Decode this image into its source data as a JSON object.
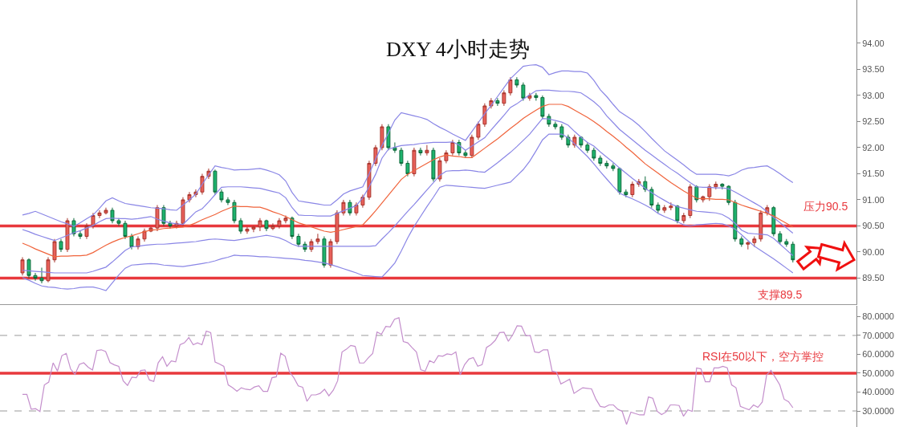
{
  "chart_data": [
    {
      "type": "candlestick",
      "title": "DXY 4小时走势",
      "tick_labels": "y",
      "categories": [
        null,
        null,
        null,
        null,
        null,
        null,
        null,
        null,
        null,
        null,
        null,
        null,
        null,
        null,
        null,
        null,
        null,
        null,
        null,
        null,
        null,
        null,
        null,
        null,
        null,
        null,
        null,
        null,
        null,
        null,
        null,
        null,
        null,
        null,
        null,
        null,
        null,
        null,
        null,
        null,
        null,
        null,
        null,
        null,
        null,
        null,
        null,
        null,
        null,
        null,
        null,
        null,
        null,
        null,
        null,
        null,
        null,
        null,
        null,
        null,
        null,
        null,
        null,
        null,
        null,
        null,
        null,
        null,
        null,
        null,
        null,
        null,
        null,
        null,
        null,
        null,
        null,
        null,
        null,
        null,
        null,
        null,
        null,
        null,
        null,
        null,
        null,
        null,
        null,
        null,
        null,
        null,
        null,
        null,
        null,
        null,
        null,
        null,
        null,
        null,
        null,
        null,
        null,
        null,
        null,
        null,
        null,
        null,
        null,
        null,
        null,
        null,
        null,
        null,
        null,
        null,
        null,
        null,
        null,
        null,
        null
      ],
      "ohlc": [
        [
          89.6,
          89.9,
          89.55,
          89.85
        ],
        [
          89.85,
          89.88,
          89.5,
          89.55
        ],
        [
          89.55,
          89.6,
          89.45,
          89.5
        ],
        [
          89.5,
          89.7,
          89.4,
          89.45
        ],
        [
          89.45,
          89.9,
          89.42,
          89.85
        ],
        [
          89.85,
          90.25,
          89.8,
          90.2
        ],
        [
          90.2,
          90.25,
          90.0,
          90.05
        ],
        [
          90.05,
          90.65,
          90.0,
          90.6
        ],
        [
          90.6,
          90.65,
          90.3,
          90.35
        ],
        [
          90.35,
          90.4,
          90.25,
          90.3
        ],
        [
          90.3,
          90.55,
          90.25,
          90.5
        ],
        [
          90.5,
          90.75,
          90.45,
          90.7
        ],
        [
          90.7,
          90.8,
          90.65,
          90.75
        ],
        [
          90.75,
          90.85,
          90.72,
          90.8
        ],
        [
          90.8,
          90.85,
          90.55,
          90.6
        ],
        [
          90.6,
          90.65,
          90.5,
          90.55
        ],
        [
          90.55,
          90.6,
          90.25,
          90.3
        ],
        [
          90.3,
          90.35,
          90.05,
          90.1
        ],
        [
          90.1,
          90.3,
          90.05,
          90.25
        ],
        [
          90.25,
          90.45,
          90.2,
          90.4
        ],
        [
          90.4,
          90.48,
          90.38,
          90.46
        ],
        [
          90.46,
          90.9,
          90.4,
          90.85
        ],
        [
          90.85,
          90.9,
          90.5,
          90.55
        ],
        [
          90.55,
          90.6,
          90.45,
          90.5
        ],
        [
          90.5,
          90.6,
          90.45,
          90.55
        ],
        [
          90.55,
          91.05,
          90.5,
          91.0
        ],
        [
          91.0,
          91.15,
          90.95,
          91.1
        ],
        [
          91.1,
          91.2,
          91.05,
          91.15
        ],
        [
          91.15,
          91.5,
          91.1,
          91.45
        ],
        [
          91.45,
          91.6,
          91.4,
          91.55
        ],
        [
          91.55,
          91.58,
          91.1,
          91.15
        ],
        [
          91.15,
          91.2,
          90.95,
          91.0
        ],
        [
          91.0,
          91.05,
          90.9,
          90.95
        ],
        [
          90.95,
          91.0,
          90.55,
          90.6
        ],
        [
          90.6,
          90.65,
          90.35,
          90.4
        ],
        [
          90.4,
          90.48,
          90.35,
          90.44
        ],
        [
          90.44,
          90.5,
          90.38,
          90.48
        ],
        [
          90.48,
          90.65,
          90.4,
          90.6
        ],
        [
          90.6,
          90.62,
          90.4,
          90.45
        ],
        [
          90.45,
          90.55,
          90.42,
          90.5
        ],
        [
          90.5,
          90.65,
          90.45,
          90.6
        ],
        [
          90.6,
          90.7,
          90.55,
          90.65
        ],
        [
          90.65,
          90.68,
          90.25,
          90.3
        ],
        [
          90.3,
          90.35,
          90.1,
          90.15
        ],
        [
          90.15,
          90.2,
          90.0,
          90.05
        ],
        [
          90.05,
          90.25,
          90.0,
          90.2
        ],
        [
          90.2,
          90.35,
          90.15,
          90.25
        ],
        [
          90.25,
          90.3,
          89.7,
          89.75
        ],
        [
          89.75,
          90.25,
          89.7,
          90.2
        ],
        [
          90.2,
          90.8,
          90.15,
          90.75
        ],
        [
          90.75,
          91.0,
          90.7,
          90.95
        ],
        [
          90.95,
          91.0,
          90.7,
          90.75
        ],
        [
          90.75,
          90.95,
          90.7,
          90.9
        ],
        [
          90.9,
          91.1,
          90.85,
          91.05
        ],
        [
          91.05,
          91.75,
          91.0,
          91.7
        ],
        [
          91.7,
          92.05,
          91.65,
          92.0
        ],
        [
          92.0,
          92.45,
          91.95,
          92.4
        ],
        [
          92.4,
          92.45,
          91.95,
          92.0
        ],
        [
          92.0,
          92.1,
          91.9,
          91.95
        ],
        [
          91.95,
          92.0,
          91.65,
          91.7
        ],
        [
          91.7,
          91.75,
          91.45,
          91.5
        ],
        [
          91.5,
          92.0,
          91.45,
          91.95
        ],
        [
          91.95,
          92.0,
          91.85,
          91.9
        ],
        [
          91.9,
          92.05,
          91.85,
          91.95
        ],
        [
          91.95,
          92.0,
          91.35,
          91.4
        ],
        [
          91.4,
          91.8,
          91.35,
          91.75
        ],
        [
          91.75,
          91.95,
          91.7,
          91.9
        ],
        [
          91.9,
          92.15,
          91.85,
          92.1
        ],
        [
          92.1,
          92.15,
          91.85,
          91.9
        ],
        [
          91.9,
          91.95,
          91.8,
          91.85
        ],
        [
          91.85,
          92.25,
          91.8,
          92.2
        ],
        [
          92.2,
          92.5,
          92.15,
          92.45
        ],
        [
          92.45,
          92.85,
          92.4,
          92.8
        ],
        [
          92.8,
          92.95,
          92.75,
          92.9
        ],
        [
          92.9,
          92.95,
          92.8,
          92.85
        ],
        [
          92.85,
          93.1,
          92.8,
          93.05
        ],
        [
          93.05,
          93.35,
          93.0,
          93.3
        ],
        [
          93.3,
          93.35,
          93.15,
          93.2
        ],
        [
          93.2,
          93.25,
          92.9,
          92.95
        ],
        [
          92.95,
          93.05,
          92.9,
          93.0
        ],
        [
          93.0,
          93.05,
          92.9,
          92.96
        ],
        [
          92.96,
          93.0,
          92.55,
          92.6
        ],
        [
          92.6,
          92.65,
          92.4,
          92.45
        ],
        [
          92.45,
          92.5,
          92.35,
          92.4
        ],
        [
          92.4,
          92.45,
          92.15,
          92.2
        ],
        [
          92.2,
          92.25,
          92.0,
          92.05
        ],
        [
          92.05,
          92.25,
          92.0,
          92.2
        ],
        [
          92.2,
          92.22,
          92.0,
          92.05
        ],
        [
          92.05,
          92.1,
          91.9,
          91.95
        ],
        [
          91.95,
          92.0,
          91.75,
          91.8
        ],
        [
          91.8,
          91.85,
          91.65,
          91.7
        ],
        [
          91.7,
          91.75,
          91.6,
          91.65
        ],
        [
          91.65,
          91.7,
          91.55,
          91.6
        ],
        [
          91.6,
          91.62,
          91.1,
          91.15
        ],
        [
          91.15,
          91.2,
          91.05,
          91.1
        ],
        [
          91.1,
          91.35,
          91.05,
          91.3
        ],
        [
          91.3,
          91.4,
          91.25,
          91.35
        ],
        [
          91.35,
          91.45,
          91.15,
          91.2
        ],
        [
          91.2,
          91.25,
          90.85,
          90.9
        ],
        [
          90.9,
          90.95,
          90.75,
          90.8
        ],
        [
          90.8,
          90.9,
          90.75,
          90.85
        ],
        [
          90.85,
          90.95,
          90.8,
          90.88
        ],
        [
          90.88,
          90.9,
          90.55,
          90.6
        ],
        [
          90.6,
          90.75,
          90.55,
          90.7
        ],
        [
          90.7,
          91.3,
          90.65,
          91.25
        ],
        [
          91.25,
          91.28,
          90.95,
          91.0
        ],
        [
          91.0,
          91.08,
          90.95,
          91.06
        ],
        [
          91.06,
          91.3,
          90.98,
          91.25
        ],
        [
          91.25,
          91.35,
          91.2,
          91.3
        ],
        [
          91.3,
          91.32,
          91.2,
          91.26
        ],
        [
          91.26,
          91.28,
          90.9,
          90.95
        ],
        [
          90.95,
          91.0,
          90.2,
          90.25
        ],
        [
          90.25,
          90.3,
          90.1,
          90.15
        ],
        [
          90.15,
          90.2,
          90.05,
          90.18
        ],
        [
          90.18,
          90.3,
          90.1,
          90.25
        ],
        [
          90.25,
          90.8,
          90.2,
          90.75
        ],
        [
          90.75,
          90.9,
          90.7,
          90.85
        ],
        [
          90.85,
          90.88,
          90.3,
          90.35
        ],
        [
          90.35,
          90.4,
          90.15,
          90.2
        ],
        [
          90.2,
          90.25,
          90.1,
          90.15
        ],
        [
          90.15,
          90.2,
          89.8,
          89.85
        ]
      ],
      "series": [
        {
          "type": "line",
          "color": "#8a86e6",
          "values": [
            90.71,
            90.74,
            90.78,
            90.73,
            90.68,
            90.63,
            90.58,
            90.54,
            90.49,
            90.56,
            90.64,
            90.71,
            90.84,
            90.98,
            91.04,
            90.98,
            90.93,
            90.91,
            90.89,
            90.87,
            90.85,
            90.84,
            90.83,
            90.81,
            90.8,
            90.9,
            91.0,
            91.11,
            91.3,
            91.48,
            91.65,
            91.62,
            91.6,
            91.57,
            91.58,
            91.58,
            91.59,
            91.6,
            91.57,
            91.53,
            91.48,
            91.36,
            91.14,
            90.98,
            90.96,
            90.94,
            90.92,
            90.9,
            90.9,
            91.0,
            91.11,
            91.17,
            91.21,
            91.25,
            91.5,
            91.78,
            92.04,
            92.28,
            92.53,
            92.67,
            92.64,
            92.61,
            92.58,
            92.54,
            92.46,
            92.39,
            92.33,
            92.26,
            92.2,
            92.14,
            92.31,
            92.48,
            92.65,
            92.81,
            92.98,
            93.15,
            93.32,
            93.44,
            93.56,
            93.58,
            93.59,
            93.54,
            93.4,
            93.44,
            93.47,
            93.47,
            93.46,
            93.46,
            93.43,
            93.29,
            93.11,
            92.98,
            92.83,
            92.69,
            92.61,
            92.53,
            92.43,
            92.31,
            92.18,
            92.06,
            91.94,
            91.85,
            91.76,
            91.67,
            91.57,
            91.49,
            91.49,
            91.49,
            91.49,
            91.48,
            91.46,
            91.5,
            91.57,
            91.61,
            91.62,
            91.64,
            91.65,
            91.58,
            91.5,
            91.41,
            91.33
          ]
        },
        {
          "type": "line",
          "color": "#8a86e6",
          "values": [
            90.43,
            90.39,
            90.34,
            90.3,
            90.26,
            90.22,
            90.27,
            90.32,
            90.37,
            90.41,
            90.46,
            90.51,
            90.58,
            90.64,
            90.65,
            90.64,
            90.64,
            90.63,
            90.64,
            90.66,
            90.68,
            90.63,
            90.59,
            90.56,
            90.54,
            90.53,
            90.65,
            90.77,
            90.83,
            90.96,
            91.1,
            91.24,
            91.25,
            91.25,
            91.25,
            91.24,
            91.23,
            91.22,
            91.19,
            91.16,
            91.13,
            91.04,
            90.85,
            90.71,
            90.7,
            90.7,
            90.69,
            90.69,
            90.69,
            90.74,
            90.79,
            90.84,
            90.89,
            91.04,
            91.25,
            91.49,
            91.8,
            91.97,
            92.01,
            92.04,
            92.05,
            92.06,
            92.08,
            92.09,
            92.1,
            92.1,
            92.1,
            92.11,
            92.05,
            91.95,
            92.03,
            92.11,
            92.19,
            92.34,
            92.48,
            92.62,
            92.77,
            92.84,
            92.93,
            93.01,
            93.09,
            93.1,
            93.1,
            93.09,
            93.08,
            93.08,
            93.07,
            93.05,
            92.97,
            92.88,
            92.77,
            92.61,
            92.48,
            92.35,
            92.25,
            92.15,
            92.05,
            91.95,
            91.86,
            91.77,
            91.68,
            91.59,
            91.51,
            91.42,
            91.33,
            91.25,
            91.24,
            91.24,
            91.23,
            91.23,
            91.21,
            91.15,
            91.08,
            91.01,
            90.94,
            90.87,
            90.77,
            90.66,
            90.56,
            90.46,
            90.36
          ]
        },
        {
          "type": "line",
          "color": "#f0643c",
          "values": [
            90.17,
            90.12,
            90.06,
            90.01,
            89.96,
            89.91,
            89.92,
            89.92,
            89.93,
            89.93,
            89.94,
            89.99,
            90.06,
            90.13,
            90.19,
            90.24,
            90.28,
            90.31,
            90.35,
            90.39,
            90.42,
            90.43,
            90.45,
            90.46,
            90.47,
            90.48,
            90.51,
            90.56,
            90.62,
            90.67,
            90.72,
            90.78,
            90.83,
            90.88,
            90.87,
            90.87,
            90.86,
            90.86,
            90.82,
            90.77,
            90.73,
            90.68,
            90.62,
            90.56,
            90.52,
            90.48,
            90.44,
            90.4,
            90.38,
            90.4,
            90.43,
            90.46,
            90.49,
            90.52,
            90.65,
            90.79,
            90.94,
            91.09,
            91.24,
            91.39,
            91.49,
            91.56,
            91.63,
            91.7,
            91.77,
            91.82,
            91.86,
            91.84,
            91.83,
            91.81,
            91.81,
            91.9,
            91.99,
            92.08,
            92.17,
            92.27,
            92.37,
            92.46,
            92.56,
            92.64,
            92.72,
            92.79,
            92.83,
            92.83,
            92.83,
            92.79,
            92.72,
            92.65,
            92.58,
            92.5,
            92.41,
            92.31,
            92.22,
            92.12,
            92.01,
            91.91,
            91.8,
            91.69,
            91.6,
            91.51,
            91.42,
            91.33,
            91.25,
            91.17,
            91.1,
            91.03,
            91.02,
            91.02,
            91.01,
            91.01,
            91.0,
            90.95,
            90.9,
            90.86,
            90.82,
            90.78,
            90.74,
            90.69,
            90.62,
            90.55,
            90.48
          ]
        },
        {
          "type": "line",
          "color": "#8a86e6",
          "values": [
            89.65,
            89.64,
            89.63,
            89.62,
            89.61,
            89.6,
            89.6,
            89.6,
            89.6,
            89.6,
            89.6,
            89.63,
            89.67,
            89.71,
            89.81,
            89.92,
            90.03,
            90.1,
            90.11,
            90.13,
            90.14,
            90.15,
            90.15,
            90.16,
            90.17,
            90.18,
            90.19,
            90.2,
            90.22,
            90.24,
            90.25,
            90.24,
            90.23,
            90.22,
            90.24,
            90.26,
            90.28,
            90.3,
            90.32,
            90.3,
            90.27,
            90.22,
            90.15,
            90.11,
            90.11,
            90.11,
            90.11,
            90.11,
            90.11,
            90.11,
            90.11,
            90.11,
            90.11,
            90.11,
            90.11,
            90.12,
            90.25,
            90.37,
            90.5,
            90.64,
            90.78,
            90.91,
            91.05,
            91.19,
            91.33,
            91.47,
            91.55,
            91.56,
            91.56,
            91.57,
            91.56,
            91.54,
            91.53,
            91.62,
            91.71,
            91.81,
            91.91,
            92.02,
            92.14,
            92.26,
            92.41,
            92.56,
            92.55,
            92.52,
            92.49,
            92.43,
            92.31,
            92.2,
            92.1,
            92.03,
            91.92,
            91.82,
            91.72,
            91.61,
            91.51,
            91.41,
            91.32,
            91.22,
            91.14,
            91.06,
            90.99,
            90.92,
            90.87,
            90.84,
            90.81,
            90.78,
            90.77,
            90.76,
            90.75,
            90.72,
            90.65,
            90.55,
            90.42,
            90.36,
            90.35,
            90.34,
            90.33,
            90.26,
            90.15,
            90.04,
            89.93
          ]
        },
        {
          "type": "line",
          "color": "#8a86e6",
          "values": [
            89.51,
            89.46,
            89.4,
            89.35,
            89.33,
            89.32,
            89.3,
            89.29,
            89.3,
            89.32,
            89.33,
            89.33,
            89.3,
            89.26,
            89.41,
            89.56,
            89.69,
            89.75,
            89.76,
            89.77,
            89.78,
            89.77,
            89.75,
            89.74,
            89.73,
            89.72,
            89.74,
            89.76,
            89.78,
            89.8,
            89.83,
            89.87,
            89.9,
            89.94,
            89.93,
            89.93,
            89.92,
            89.91,
            89.91,
            89.9,
            89.89,
            89.88,
            89.87,
            89.86,
            89.84,
            89.83,
            89.81,
            89.79,
            89.76,
            89.72,
            89.68,
            89.64,
            89.6,
            89.55,
            89.54,
            89.53,
            89.52,
            89.65,
            89.79,
            90.02,
            90.27,
            90.49,
            90.68,
            90.87,
            91.05,
            91.24,
            91.28,
            91.27,
            91.26,
            91.25,
            91.24,
            91.23,
            91.22,
            91.25,
            91.28,
            91.31,
            91.34,
            91.46,
            91.58,
            91.74,
            91.94,
            92.15,
            92.26,
            92.26,
            92.26,
            92.19,
            92.07,
            91.95,
            91.83,
            91.69,
            91.54,
            91.4,
            91.26,
            91.13,
            91.07,
            91.02,
            90.96,
            90.9,
            90.83,
            90.74,
            90.68,
            90.63,
            90.58,
            90.52,
            90.5,
            90.52,
            90.53,
            90.54,
            90.55,
            90.54,
            90.5,
            90.44,
            90.33,
            90.22,
            90.11,
            90.03,
            89.95,
            89.87,
            89.78,
            89.69,
            89.6
          ]
        }
      ],
      "ylim": [
        89.0,
        94.83
      ],
      "yticks": [
        {
          "value": 89.5,
          "label": "89.50"
        },
        {
          "value": 90,
          "label": "90.00"
        },
        {
          "value": 90.5,
          "label": "90.50"
        },
        {
          "value": 91,
          "label": "91.00"
        },
        {
          "value": 91.5,
          "label": "91.50"
        },
        {
          "value": 92,
          "label": "92.00"
        },
        {
          "value": 92.5,
          "label": "92.50"
        },
        {
          "value": 93,
          "label": "93.00"
        },
        {
          "value": 93.5,
          "label": "93.50"
        },
        {
          "value": 94,
          "label": "94.00"
        }
      ],
      "ref_lines": [
        {
          "axis": "y",
          "value": 90.5,
          "label": "压力90.5",
          "color": "#e8383d"
        },
        {
          "axis": "y",
          "value": 89.5,
          "label": "支撑89.5",
          "color": "#e8383d"
        }
      ]
    },
    {
      "type": "line",
      "tick_labels": "y",
      "categories": [
        null,
        null,
        null,
        null,
        null,
        null,
        null,
        null,
        null,
        null,
        null,
        null,
        null,
        null,
        null,
        null,
        null,
        null,
        null,
        null,
        null,
        null,
        null,
        null,
        null,
        null,
        null,
        null,
        null,
        null,
        null,
        null,
        null,
        null,
        null,
        null,
        null,
        null,
        null,
        null,
        null,
        null,
        null,
        null,
        null,
        null,
        null,
        null,
        null,
        null,
        null,
        null,
        null,
        null,
        null,
        null,
        null,
        null,
        null,
        null,
        null,
        null,
        null,
        null,
        null,
        null,
        null,
        null,
        null,
        null,
        null,
        null,
        null,
        null,
        null,
        null,
        null,
        null,
        null,
        null,
        null,
        null,
        null,
        null,
        null,
        null,
        null,
        null,
        null,
        null,
        null,
        null,
        null,
        null,
        null,
        null,
        null,
        null,
        null,
        null,
        null,
        null,
        null,
        null,
        null,
        null,
        null,
        null,
        null,
        null,
        null,
        null,
        null,
        null,
        null,
        null,
        null,
        null,
        null,
        null,
        null,
        null,
        null,
        null,
        null,
        null,
        null,
        null,
        null,
        null,
        null,
        null,
        null,
        null,
        null,
        null,
        null,
        null,
        null,
        null,
        null,
        null,
        null,
        null,
        null,
        null,
        null,
        null,
        null,
        null,
        null,
        null,
        null,
        null,
        null,
        null,
        null,
        null,
        null,
        null,
        null,
        null,
        null,
        null,
        null,
        null,
        null,
        null,
        null,
        null,
        null,
        null,
        null,
        null,
        null,
        null,
        null
      ],
      "series": [
        {
          "color": "#c48fcc",
          "values": [
            38.8,
            38.8,
            30.9,
            31.2,
            29.7,
            43.8,
            45.3,
            55.5,
            51.1,
            59.3,
            60.5,
            52.2,
            49.4,
            54.7,
            55.5,
            53.2,
            51.7,
            62.0,
            62.4,
            61.5,
            55.6,
            54.4,
            53.6,
            46.0,
            43.5,
            47.9,
            47.6,
            51.4,
            51.7,
            46.4,
            45.6,
            55.5,
            58.7,
            53.7,
            56.5,
            56.0,
            65.1,
            66.1,
            68.9,
            65.1,
            66.1,
            65.1,
            72.3,
            71.5,
            55.9,
            54.9,
            53.6,
            43.8,
            42.3,
            40.4,
            42.3,
            41.5,
            41.2,
            42.7,
            43.3,
            40.4,
            40.4,
            47.6,
            48.1,
            60.6,
            59.0,
            50.7,
            47.6,
            43.3,
            42.6,
            35.1,
            38.5,
            38.5,
            39.3,
            41.5,
            38.0,
            41.0,
            46.0,
            61.2,
            62.7,
            64.7,
            64.2,
            55.4,
            55.4,
            58.1,
            60.4,
            71.8,
            70.6,
            74.8,
            74.5,
            78.6,
            79.4,
            66.8,
            66.1,
            63.5,
            61.2,
            51.8,
            51.1,
            56.7,
            55.5,
            59.3,
            59.0,
            60.2,
            59.8,
            61.3,
            49.1,
            54.5,
            57.5,
            58.3,
            53.7,
            54.5,
            63.6,
            65.1,
            67.4,
            71.5,
            71.7,
            66.9,
            70.4,
            75.1,
            74.9,
            69.8,
            70.0,
            61.3,
            60.9,
            62.4,
            62.4,
            51.1,
            50.6,
            44.3,
            45.5,
            46.8,
            39.3,
            40.8,
            42.3,
            42.0,
            41.7,
            36.2,
            32.4,
            32.0,
            33.2,
            33.2,
            30.9,
            29.8,
            22.9,
            29.4,
            28.6,
            27.9,
            27.9,
            37.4,
            36.7,
            29.8,
            28.1,
            29.4,
            33.2,
            33.2,
            32.9,
            27.2,
            30.6,
            29.8,
            52.8,
            52.3,
            45.5,
            45.5,
            52.8,
            52.8,
            53.6,
            52.9,
            43.8,
            42.3,
            32.4,
            31.5,
            30.6,
            33.2,
            31.9,
            34.7,
            49.1,
            51.5,
            47.7,
            43.8,
            36.2,
            34.9,
            31.7
          ]
        }
      ],
      "ylim": [
        21.5,
        85.7
      ],
      "yticks": [
        {
          "value": 30,
          "label": "30.0000"
        },
        {
          "value": 40,
          "label": "40.0000"
        },
        {
          "value": 50,
          "label": "50.0000"
        },
        {
          "value": 60,
          "label": "60.0000"
        },
        {
          "value": 70,
          "label": "70.0000"
        },
        {
          "value": 80,
          "label": "80.0000"
        }
      ],
      "ref_lines": [
        {
          "axis": "y",
          "value": 70,
          "color": "#999999",
          "line_style": "dashed"
        },
        {
          "axis": "y",
          "value": 30,
          "color": "#999999",
          "line_style": "dashed"
        },
        {
          "axis": "y",
          "value": 50,
          "label": "RSI在50以下，空方掌控",
          "color": "#e8383d",
          "line_style": "solid"
        }
      ]
    }
  ]
}
